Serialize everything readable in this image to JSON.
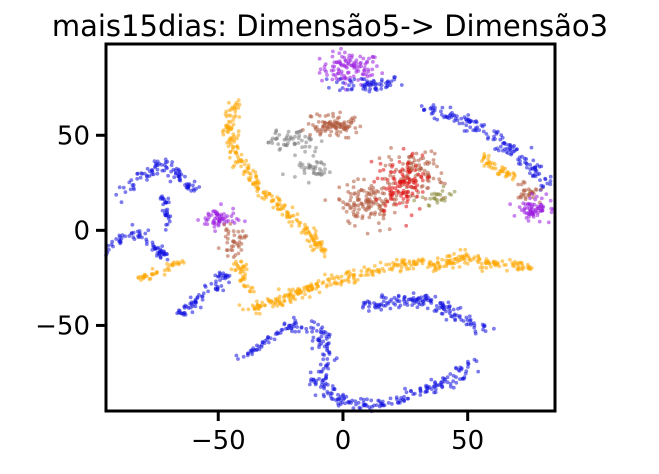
{
  "chart_data": {
    "type": "scatter",
    "title": "mais15dias: Dimensão5-> Dimensão3",
    "xlabel": "",
    "ylabel": "",
    "xlim": [
      -95,
      85
    ],
    "ylim": [
      -95,
      98
    ],
    "xticks": [
      -50,
      0,
      50
    ],
    "yticks": [
      -50,
      0,
      50
    ],
    "xtick_labels": [
      "−50",
      "0",
      "50"
    ],
    "ytick_labels": [
      "−50",
      "0",
      "50"
    ],
    "grid": false,
    "legend": "none",
    "colors": {
      "blue": "#1010e0",
      "orange": "#ffa500",
      "purple": "#9a1ee0",
      "brown": "#b05a3c",
      "gray": "#808080",
      "red": "#e01010",
      "olive": "#8a8a3a"
    },
    "clusters": [
      {
        "color": "purple",
        "shape": "blob",
        "center": [
          3,
          85
        ],
        "spread": [
          10,
          7
        ],
        "n": 110
      },
      {
        "color": "blue",
        "shape": "blob",
        "center": [
          10,
          77
        ],
        "spread": [
          12,
          4
        ],
        "n": 60
      },
      {
        "color": "orange",
        "shape": "path",
        "path": [
          [
            -43,
            67
          ],
          [
            -46,
            55
          ],
          [
            -43,
            40
          ],
          [
            -35,
            25
          ],
          [
            -25,
            12
          ],
          [
            -15,
            0
          ],
          [
            -7,
            -12
          ]
        ],
        "width": 2.2,
        "n": 230
      },
      {
        "color": "gray",
        "shape": "blob",
        "center": [
          -20,
          48
        ],
        "spread": [
          8,
          5
        ],
        "n": 55
      },
      {
        "color": "gray",
        "shape": "blob",
        "center": [
          -12,
          32
        ],
        "spread": [
          5,
          5
        ],
        "n": 40
      },
      {
        "color": "brown",
        "shape": "blob",
        "center": [
          -4,
          55
        ],
        "spread": [
          9,
          5
        ],
        "n": 100
      },
      {
        "color": "brown",
        "shape": "blob",
        "center": [
          10,
          14
        ],
        "spread": [
          10,
          9
        ],
        "n": 130
      },
      {
        "color": "brown",
        "shape": "blob",
        "center": [
          28,
          30
        ],
        "spread": [
          10,
          10
        ],
        "n": 100
      },
      {
        "color": "red",
        "shape": "blob",
        "center": [
          24,
          24
        ],
        "spread": [
          8,
          12
        ],
        "n": 110
      },
      {
        "color": "olive",
        "shape": "blob",
        "center": [
          38,
          18
        ],
        "spread": [
          5,
          5
        ],
        "n": 25
      },
      {
        "color": "blue",
        "shape": "path",
        "path": [
          [
            -88,
            20
          ],
          [
            -80,
            28
          ],
          [
            -72,
            36
          ],
          [
            -64,
            26
          ],
          [
            -58,
            20
          ]
        ],
        "width": 2.5,
        "n": 90
      },
      {
        "color": "blue",
        "shape": "path",
        "path": [
          [
            -72,
            18
          ],
          [
            -71,
            10
          ],
          [
            -70,
            2
          ]
        ],
        "width": 1.5,
        "n": 30
      },
      {
        "color": "blue",
        "shape": "path",
        "path": [
          [
            -94,
            -12
          ],
          [
            -90,
            -3
          ],
          [
            -82,
            -2
          ],
          [
            -76,
            -6
          ],
          [
            -72,
            -14
          ]
        ],
        "width": 2.5,
        "n": 70
      },
      {
        "color": "orange",
        "shape": "path",
        "path": [
          [
            -82,
            -25
          ],
          [
            -72,
            -22
          ],
          [
            -64,
            -15
          ]
        ],
        "width": 1.8,
        "n": 40
      },
      {
        "color": "purple",
        "shape": "blob",
        "center": [
          -50,
          6
        ],
        "spread": [
          6,
          5
        ],
        "n": 60
      },
      {
        "color": "brown",
        "shape": "blob",
        "center": [
          -44,
          -6
        ],
        "spread": [
          4,
          6
        ],
        "n": 40
      },
      {
        "color": "orange",
        "shape": "path",
        "path": [
          [
            -42,
            -16
          ],
          [
            -40,
            -26
          ],
          [
            -36,
            -32
          ]
        ],
        "width": 2.2,
        "n": 40
      },
      {
        "color": "blue",
        "shape": "path",
        "path": [
          [
            -66,
            -44
          ],
          [
            -58,
            -36
          ],
          [
            -52,
            -30
          ],
          [
            -47,
            -23
          ]
        ],
        "width": 2.5,
        "n": 70
      },
      {
        "color": "orange",
        "shape": "path",
        "path": [
          [
            -38,
            -42
          ],
          [
            -24,
            -36
          ],
          [
            -8,
            -28
          ],
          [
            10,
            -22
          ],
          [
            28,
            -17
          ],
          [
            38,
            -16
          ]
        ],
        "width": 2.6,
        "n": 230
      },
      {
        "color": "orange",
        "shape": "path",
        "path": [
          [
            36,
            -20
          ],
          [
            48,
            -14
          ],
          [
            62,
            -18
          ],
          [
            74,
            -18
          ]
        ],
        "width": 2.6,
        "n": 120
      },
      {
        "color": "blue",
        "shape": "path",
        "path": [
          [
            -42,
            -68
          ],
          [
            -28,
            -56
          ],
          [
            -20,
            -50
          ]
        ],
        "width": 1.3,
        "n": 40
      },
      {
        "color": "blue",
        "shape": "path",
        "path": [
          [
            -22,
            -52
          ],
          [
            -14,
            -50
          ],
          [
            -8,
            -55
          ],
          [
            -6,
            -70
          ],
          [
            -10,
            -80
          ],
          [
            -4,
            -88
          ],
          [
            8,
            -92
          ],
          [
            20,
            -90
          ],
          [
            32,
            -85
          ],
          [
            44,
            -78
          ],
          [
            52,
            -70
          ]
        ],
        "width": 3.2,
        "n": 260
      },
      {
        "color": "blue",
        "shape": "path",
        "path": [
          [
            8,
            -40
          ],
          [
            18,
            -38
          ],
          [
            30,
            -36
          ],
          [
            40,
            -40
          ],
          [
            48,
            -46
          ],
          [
            56,
            -52
          ]
        ],
        "width": 3.2,
        "n": 150
      },
      {
        "color": "blue",
        "shape": "path",
        "path": [
          [
            34,
            64
          ],
          [
            48,
            58
          ],
          [
            60,
            50
          ],
          [
            68,
            42
          ],
          [
            76,
            34
          ],
          [
            82,
            22
          ]
        ],
        "width": 3.0,
        "n": 150
      },
      {
        "color": "orange",
        "shape": "path",
        "path": [
          [
            56,
            40
          ],
          [
            60,
            34
          ],
          [
            68,
            28
          ]
        ],
        "width": 2.0,
        "n": 45
      },
      {
        "color": "brown",
        "shape": "blob",
        "center": [
          74,
          20
        ],
        "spread": [
          4,
          4
        ],
        "n": 30
      },
      {
        "color": "purple",
        "shape": "blob",
        "center": [
          77,
          11
        ],
        "spread": [
          6,
          5
        ],
        "n": 70
      }
    ]
  }
}
